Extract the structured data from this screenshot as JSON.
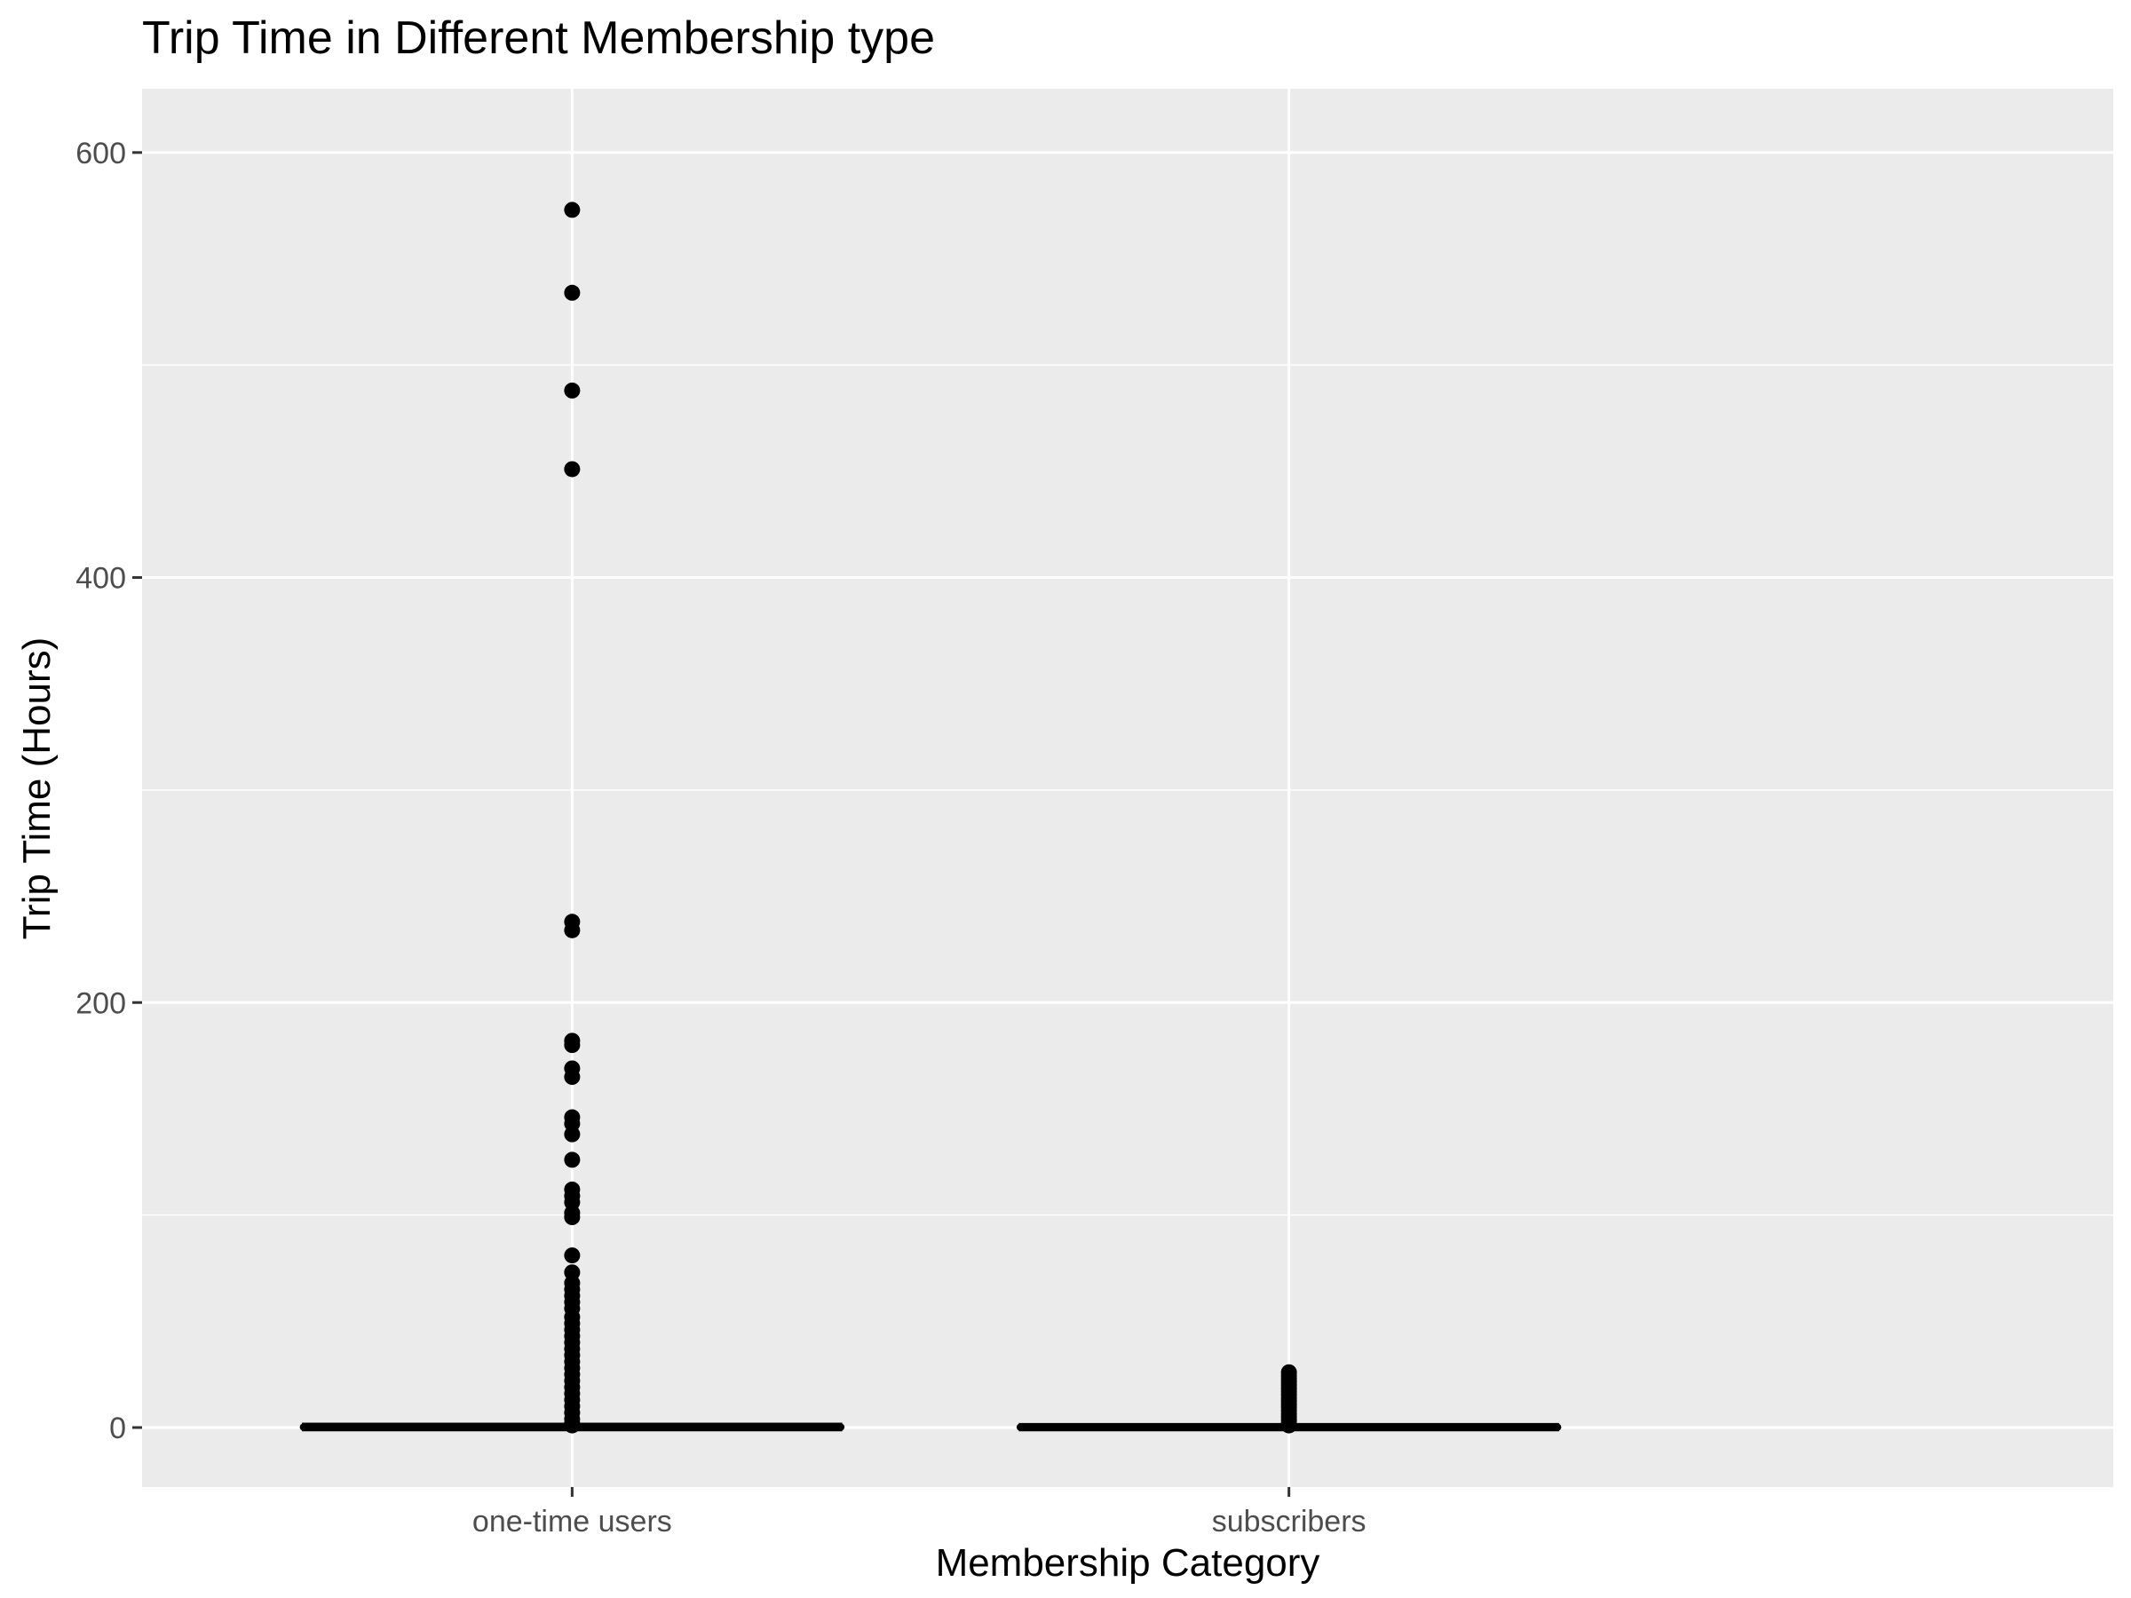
{
  "chart_data": {
    "type": "box",
    "title": "Trip Time in Different Membership type",
    "xlabel": "Membership Category",
    "ylabel": "Trip Time (Hours)",
    "categories": [
      "one-time users",
      "subscribers"
    ],
    "ylim": [
      -28,
      630
    ],
    "yticks": [
      0,
      200,
      400,
      600
    ],
    "grid": true,
    "panel_color": "#ebebeb",
    "grid_color": "#ffffff",
    "mark_color": "#000000",
    "boxes": [
      {
        "category": "one-time users",
        "min": 0,
        "q1": 0.1,
        "median": 0.2,
        "q3": 0.4,
        "whisker_high": 0.8,
        "outliers": [
          573,
          534,
          488,
          451,
          238,
          234,
          182,
          180,
          169,
          165,
          146,
          143,
          138,
          126,
          112,
          109,
          106,
          101,
          99,
          81,
          73,
          68,
          65,
          62,
          59,
          56,
          52,
          49,
          46,
          43,
          40,
          37,
          34,
          31,
          28,
          25,
          22,
          19,
          16,
          13,
          10,
          7,
          4,
          2,
          1
        ]
      },
      {
        "category": "subscribers",
        "min": 0,
        "q1": 0.1,
        "median": 0.15,
        "q3": 0.25,
        "whisker_high": 0.5,
        "outliers": [
          26,
          24.5,
          23,
          21.5,
          20,
          18.5,
          17,
          15.5,
          14,
          12.5,
          11,
          9.5,
          8,
          6.5,
          5,
          3.5,
          2,
          1
        ]
      }
    ]
  }
}
